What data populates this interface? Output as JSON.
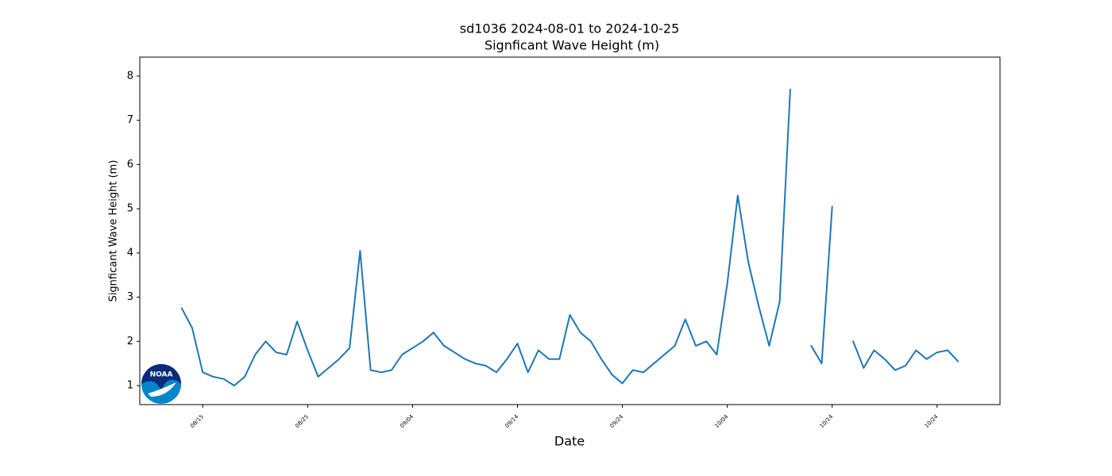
{
  "chart_data": {
    "type": "line",
    "title": "sd1036 2024-08-01 to 2024-10-25",
    "subtitle": "Signficant Wave Height (m)",
    "x_label": "Date",
    "y_label": "Signficant Wave Height (m)",
    "logo_text": "NOAA",
    "color": "#1f77b4",
    "x": [
      "08/13",
      "08/14",
      "08/15",
      "08/16",
      "08/17",
      "08/18",
      "08/19",
      "08/20",
      "08/21",
      "08/22",
      "08/23",
      "08/24",
      "08/25",
      "08/26",
      "08/27",
      "08/28",
      "08/29",
      "08/30",
      "08/31",
      "09/01",
      "09/02",
      "09/03",
      "09/04",
      "09/05",
      "09/06",
      "09/07",
      "09/08",
      "09/09",
      "09/10",
      "09/11",
      "09/12",
      "09/13",
      "09/14",
      "09/15",
      "09/16",
      "09/17",
      "09/18",
      "09/19",
      "09/20",
      "09/21",
      "09/22",
      "09/23",
      "09/24",
      "09/25",
      "09/26",
      "09/27",
      "09/28",
      "09/29",
      "09/30",
      "10/01",
      "10/02",
      "10/03",
      "10/04",
      "10/05",
      "10/06",
      "10/07",
      "10/08",
      "10/09",
      "10/10",
      "10/11",
      "10/12",
      "10/13",
      "10/14",
      "10/15",
      "10/16",
      "10/17",
      "10/18",
      "10/19",
      "10/20",
      "10/21",
      "10/22",
      "10/23",
      "10/24",
      "10/25",
      "10/26"
    ],
    "values": [
      2.75,
      2.3,
      1.3,
      1.2,
      1.15,
      1.0,
      1.2,
      1.7,
      2.0,
      1.75,
      1.7,
      2.45,
      1.8,
      1.2,
      1.4,
      1.6,
      1.85,
      4.05,
      1.35,
      1.3,
      1.35,
      1.7,
      1.85,
      2.0,
      2.2,
      1.9,
      1.75,
      1.6,
      1.5,
      1.45,
      1.3,
      1.6,
      1.95,
      1.3,
      1.8,
      1.6,
      1.6,
      2.6,
      2.2,
      2.0,
      1.6,
      1.25,
      1.05,
      1.35,
      1.3,
      1.5,
      1.7,
      1.9,
      2.5,
      1.9,
      2.0,
      1.7,
      3.3,
      5.3,
      3.8,
      2.8,
      1.9,
      2.9,
      7.7,
      null,
      1.9,
      1.5,
      5.05,
      null,
      2.0,
      1.4,
      1.8,
      1.6,
      1.35,
      1.45,
      1.8,
      1.6,
      1.75,
      1.8,
      1.55
    ],
    "xlim": [
      "08/09",
      "10/30"
    ],
    "xticks": [
      "08/15",
      "08/25",
      "09/04",
      "09/14",
      "09/24",
      "10/04",
      "10/14",
      "10/24"
    ],
    "ylim": [
      0.57,
      8.43
    ],
    "yticks": [
      1,
      2,
      3,
      4,
      5,
      6,
      7,
      8
    ],
    "grid": false
  }
}
